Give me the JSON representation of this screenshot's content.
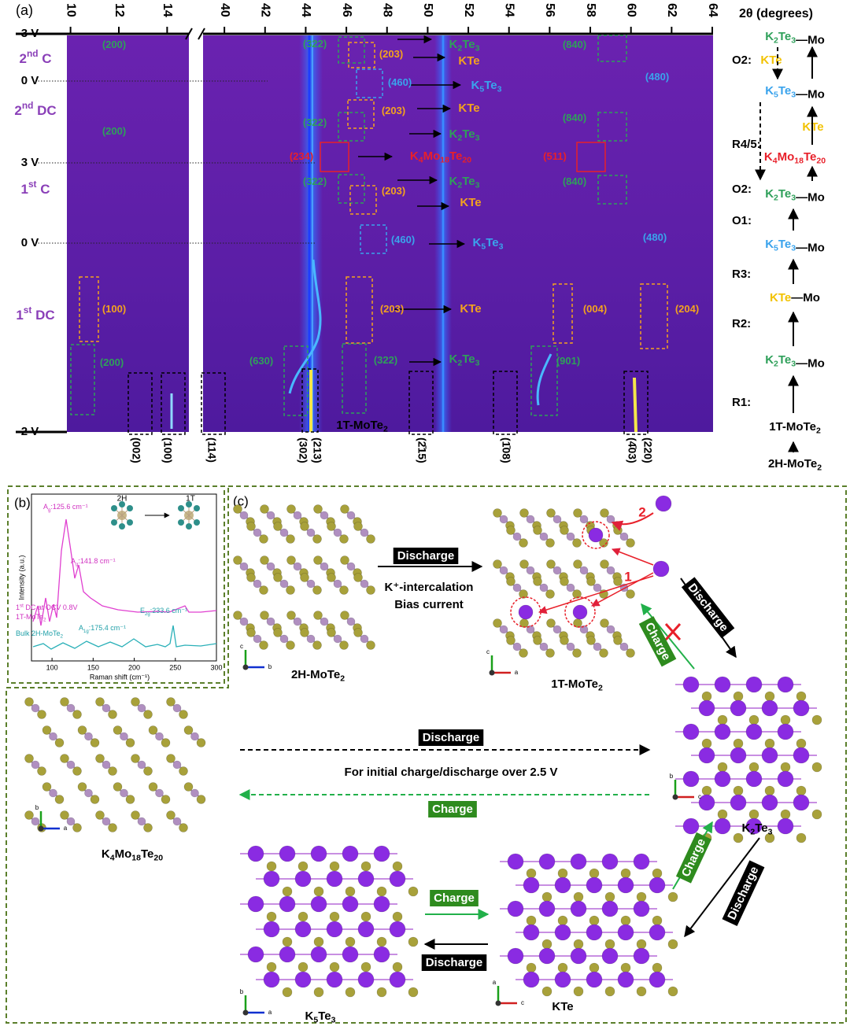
{
  "panel_a": {
    "label": "(a)",
    "axis_label": "2θ (degrees)",
    "segments": [
      {
        "xlim": [
          9.85,
          14.9
        ],
        "xticks": [
          10,
          12,
          14
        ]
      },
      {
        "xlim": [
          38.95,
          64
        ],
        "xticks": [
          40,
          42,
          44,
          46,
          48,
          50,
          52,
          54,
          56,
          58,
          60,
          62,
          64
        ]
      }
    ],
    "voltages": [
      "3 V",
      "0 V",
      "3 V",
      "0 V",
      "2 V"
    ],
    "stages": [
      "2nd C",
      "2nd DC",
      "1st C",
      "1st DC"
    ],
    "annotations": [
      "(200)",
      "(322)",
      "(203)",
      "K2Te3",
      "KTe",
      "(840)",
      "(460)",
      "K5Te3",
      "(480)",
      "(203)",
      "KTe",
      "(322)",
      "K2Te3",
      "(840)",
      "(200)",
      "(234)",
      "K4Mo18Te20",
      "(511)",
      "(322)",
      "K2Te3",
      "(840)",
      "(203)",
      "KTe",
      "(460)",
      "K5Te3",
      "(480)",
      "(100)",
      "(203)",
      "KTe",
      "(004)",
      "(204)",
      "(200)",
      "(630)",
      "(322)",
      "K2Te3",
      "(901)",
      "1T-MoTe2"
    ],
    "indices": [
      "(002)",
      "(100)",
      "(114)",
      "(302)",
      "(213)",
      "(2̄15)",
      "(1̄08)",
      "(4̄03)",
      "(220)"
    ],
    "scheme": {
      "nodes": [
        {
          "compound": "K2Te3",
          "suffix": "—Mo"
        },
        {
          "compound": "K5Te3",
          "suffix": "—Mo"
        },
        {
          "compound": "K4Mo18Te20"
        },
        {
          "compound": "K2Te3",
          "suffix": "—Mo"
        },
        {
          "compound": "K5Te3",
          "suffix": "—Mo"
        },
        {
          "compound": "KTe",
          "suffix": "—Mo"
        },
        {
          "compound": "K2Te3",
          "suffix": "—Mo"
        },
        {
          "compound": "1T-MoTe2"
        },
        {
          "compound": "2H-MoTe2"
        }
      ],
      "steps": [
        "O2:",
        "R4/5:",
        "O2:",
        "O1:",
        "R3:",
        "R2:",
        "R1:"
      ],
      "notes": [
        "KTe",
        "KTe"
      ]
    }
  },
  "panel_b": {
    "label": "(b)",
    "phases": [
      "2H",
      "1T"
    ],
    "peaks": [
      {
        "symbol": "A",
        "sub": "g",
        "text": ":125.6 cm⁻¹"
      },
      {
        "symbol": "A",
        "sub": "g",
        "text": ":141.8 cm⁻¹"
      },
      {
        "symbol": "E",
        "sub": "2g",
        "text": ":233.6 cm⁻¹"
      },
      {
        "symbol": "A",
        "sub": "1g",
        "text": ":175.4 cm⁻¹"
      }
    ],
    "traces": [
      "1st DC at OCV 0.8V",
      "1T-MoTe2",
      "Bulk 2H-MoTe2"
    ],
    "y_label": "Intensity (a.u.)",
    "x_label": "Raman shift (cm⁻¹)",
    "xlim": [
      75,
      300
    ],
    "xticks": [
      100,
      150,
      200,
      250,
      300
    ]
  },
  "panel_c": {
    "label": "(c)",
    "structures": [
      "2H-MoTe2",
      "1T-MoTe2",
      "K2Te3",
      "K4Mo18Te20",
      "K5Te3",
      "KTe"
    ],
    "steps": [
      "1",
      "2"
    ],
    "intercalation": [
      "K⁺-intercalation",
      "Bias current"
    ],
    "note": "For initial charge/discharge over 2.5 V",
    "arrows": [
      "Discharge",
      "Discharge",
      "Charge",
      "Discharge",
      "Charge",
      "Charge",
      "Discharge",
      "Charge",
      "Discharge"
    ],
    "axes": [
      [
        "c",
        "b"
      ],
      [
        "c",
        "a"
      ],
      [
        "b",
        "a"
      ],
      [
        "b",
        "c"
      ],
      [
        "b",
        "a"
      ],
      [
        "a",
        "c"
      ]
    ]
  }
}
